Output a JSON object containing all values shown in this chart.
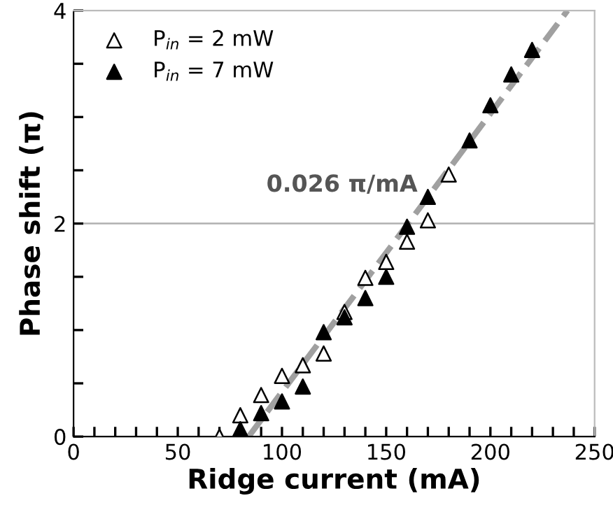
{
  "chart_data": {
    "type": "scatter",
    "xlabel": "Ridge current (mA)",
    "ylabel": "Phase shift (π)",
    "series": [
      {
        "name": "P$_{in}$ = 2 mW",
        "color": "#ffffff",
        "marker": "triangle",
        "x": [
          70,
          80,
          90,
          100,
          110,
          120,
          130,
          140,
          150,
          160,
          170,
          180
        ],
        "values": [
          0.0,
          0.2,
          0.39,
          0.57,
          0.67,
          0.78,
          1.17,
          1.49,
          1.64,
          1.83,
          2.03,
          2.46
        ]
      },
      {
        "name": "P$_{in}$ = 7 mW",
        "color": "#000000",
        "marker": "triangle",
        "x": [
          80,
          90,
          100,
          110,
          120,
          130,
          140,
          150,
          160,
          170,
          190,
          200,
          210,
          220
        ],
        "values": [
          0.07,
          0.22,
          0.33,
          0.47,
          0.98,
          1.12,
          1.3,
          1.5,
          1.97,
          2.25,
          2.78,
          3.11,
          3.4,
          3.63
        ]
      },
      {
        "type": "line",
        "color": "#a0a0a0",
        "line_style": "dashed",
        "x": [
          84,
          237
        ],
        "values": [
          0,
          4
        ]
      }
    ],
    "annotations": [
      "0.026 π/mA"
    ],
    "ref_lines": [
      {
        "axis": "y",
        "value": 2,
        "color": "#b0b0b0"
      }
    ],
    "xlim": [
      0,
      250
    ],
    "ylim": [
      0,
      4
    ],
    "xticks": [
      0,
      {
        "value": 10,
        "label": null
      },
      {
        "value": 20,
        "label": null
      },
      {
        "value": 30,
        "label": null
      },
      {
        "value": 40,
        "label": null
      },
      50,
      {
        "value": 60,
        "label": null
      },
      {
        "value": 70,
        "label": null
      },
      {
        "value": 80,
        "label": null
      },
      {
        "value": 90,
        "label": null
      },
      100,
      {
        "value": 110,
        "label": null
      },
      {
        "value": 120,
        "label": null
      },
      {
        "value": 130,
        "label": null
      },
      {
        "value": 140,
        "label": null
      },
      150,
      {
        "value": 160,
        "label": null
      },
      {
        "value": 170,
        "label": null
      },
      {
        "value": 180,
        "label": null
      },
      {
        "value": 190,
        "label": null
      },
      200,
      {
        "value": 210,
        "label": null
      },
      {
        "value": 220,
        "label": null
      },
      {
        "value": 230,
        "label": null
      },
      {
        "value": 240,
        "label": null
      },
      250
    ],
    "yticks": [
      0,
      {
        "value": 0.5,
        "label": null
      },
      {
        "value": 1,
        "label": null
      },
      {
        "value": 1.5,
        "label": null
      },
      2,
      {
        "value": 2.5,
        "label": null
      },
      {
        "value": 3,
        "label": null
      },
      {
        "value": 3.5,
        "label": null
      },
      4
    ],
    "legend": "top left",
    "grid": false
  }
}
